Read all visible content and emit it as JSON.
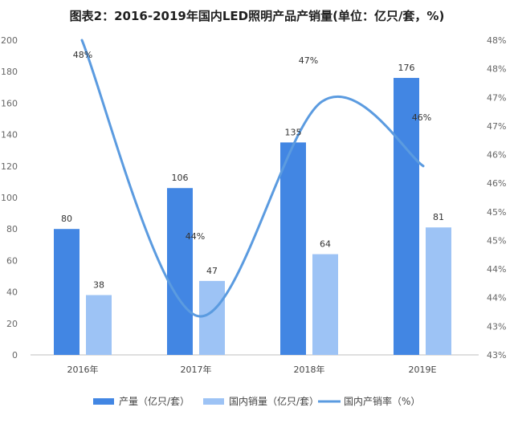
{
  "chart_data": {
    "type": "bar",
    "title": "图表2：2016-2019年国内LED照明产品产销量(单位：亿只/套，%)",
    "categories": [
      "2016年",
      "2017年",
      "2018年",
      "2019E"
    ],
    "series": [
      {
        "name": "产量（亿只/套）",
        "type": "bar",
        "values": [
          80,
          106,
          135,
          176
        ],
        "labels": [
          "80",
          "106",
          "135",
          "176"
        ],
        "color": "#4286e3"
      },
      {
        "name": "国内销量（亿只/套）",
        "type": "bar",
        "values": [
          38,
          47,
          64,
          81
        ],
        "labels": [
          "38",
          "47",
          "64",
          "81"
        ],
        "color": "#9dc3f5"
      },
      {
        "name": "国内产销率（%）",
        "type": "line",
        "axis": "right",
        "smooth": true,
        "values": [
          48,
          44,
          47,
          46
        ],
        "labels": [
          "48%",
          "44%",
          "47%",
          "46%"
        ],
        "color": "#5b9be0"
      }
    ],
    "y_left": {
      "min": 0,
      "max": 200,
      "step": 20,
      "ticks": [
        "0",
        "20",
        "40",
        "60",
        "80",
        "100",
        "120",
        "140",
        "160",
        "180",
        "200"
      ]
    },
    "y_right": {
      "min": 43,
      "max": 48,
      "ticks": [
        "43%",
        "43%",
        "44%",
        "44%",
        "45%",
        "45%",
        "46%",
        "46%",
        "47%",
        "47%",
        "48%",
        "48%"
      ]
    },
    "grid": false,
    "legend": "bottom"
  }
}
